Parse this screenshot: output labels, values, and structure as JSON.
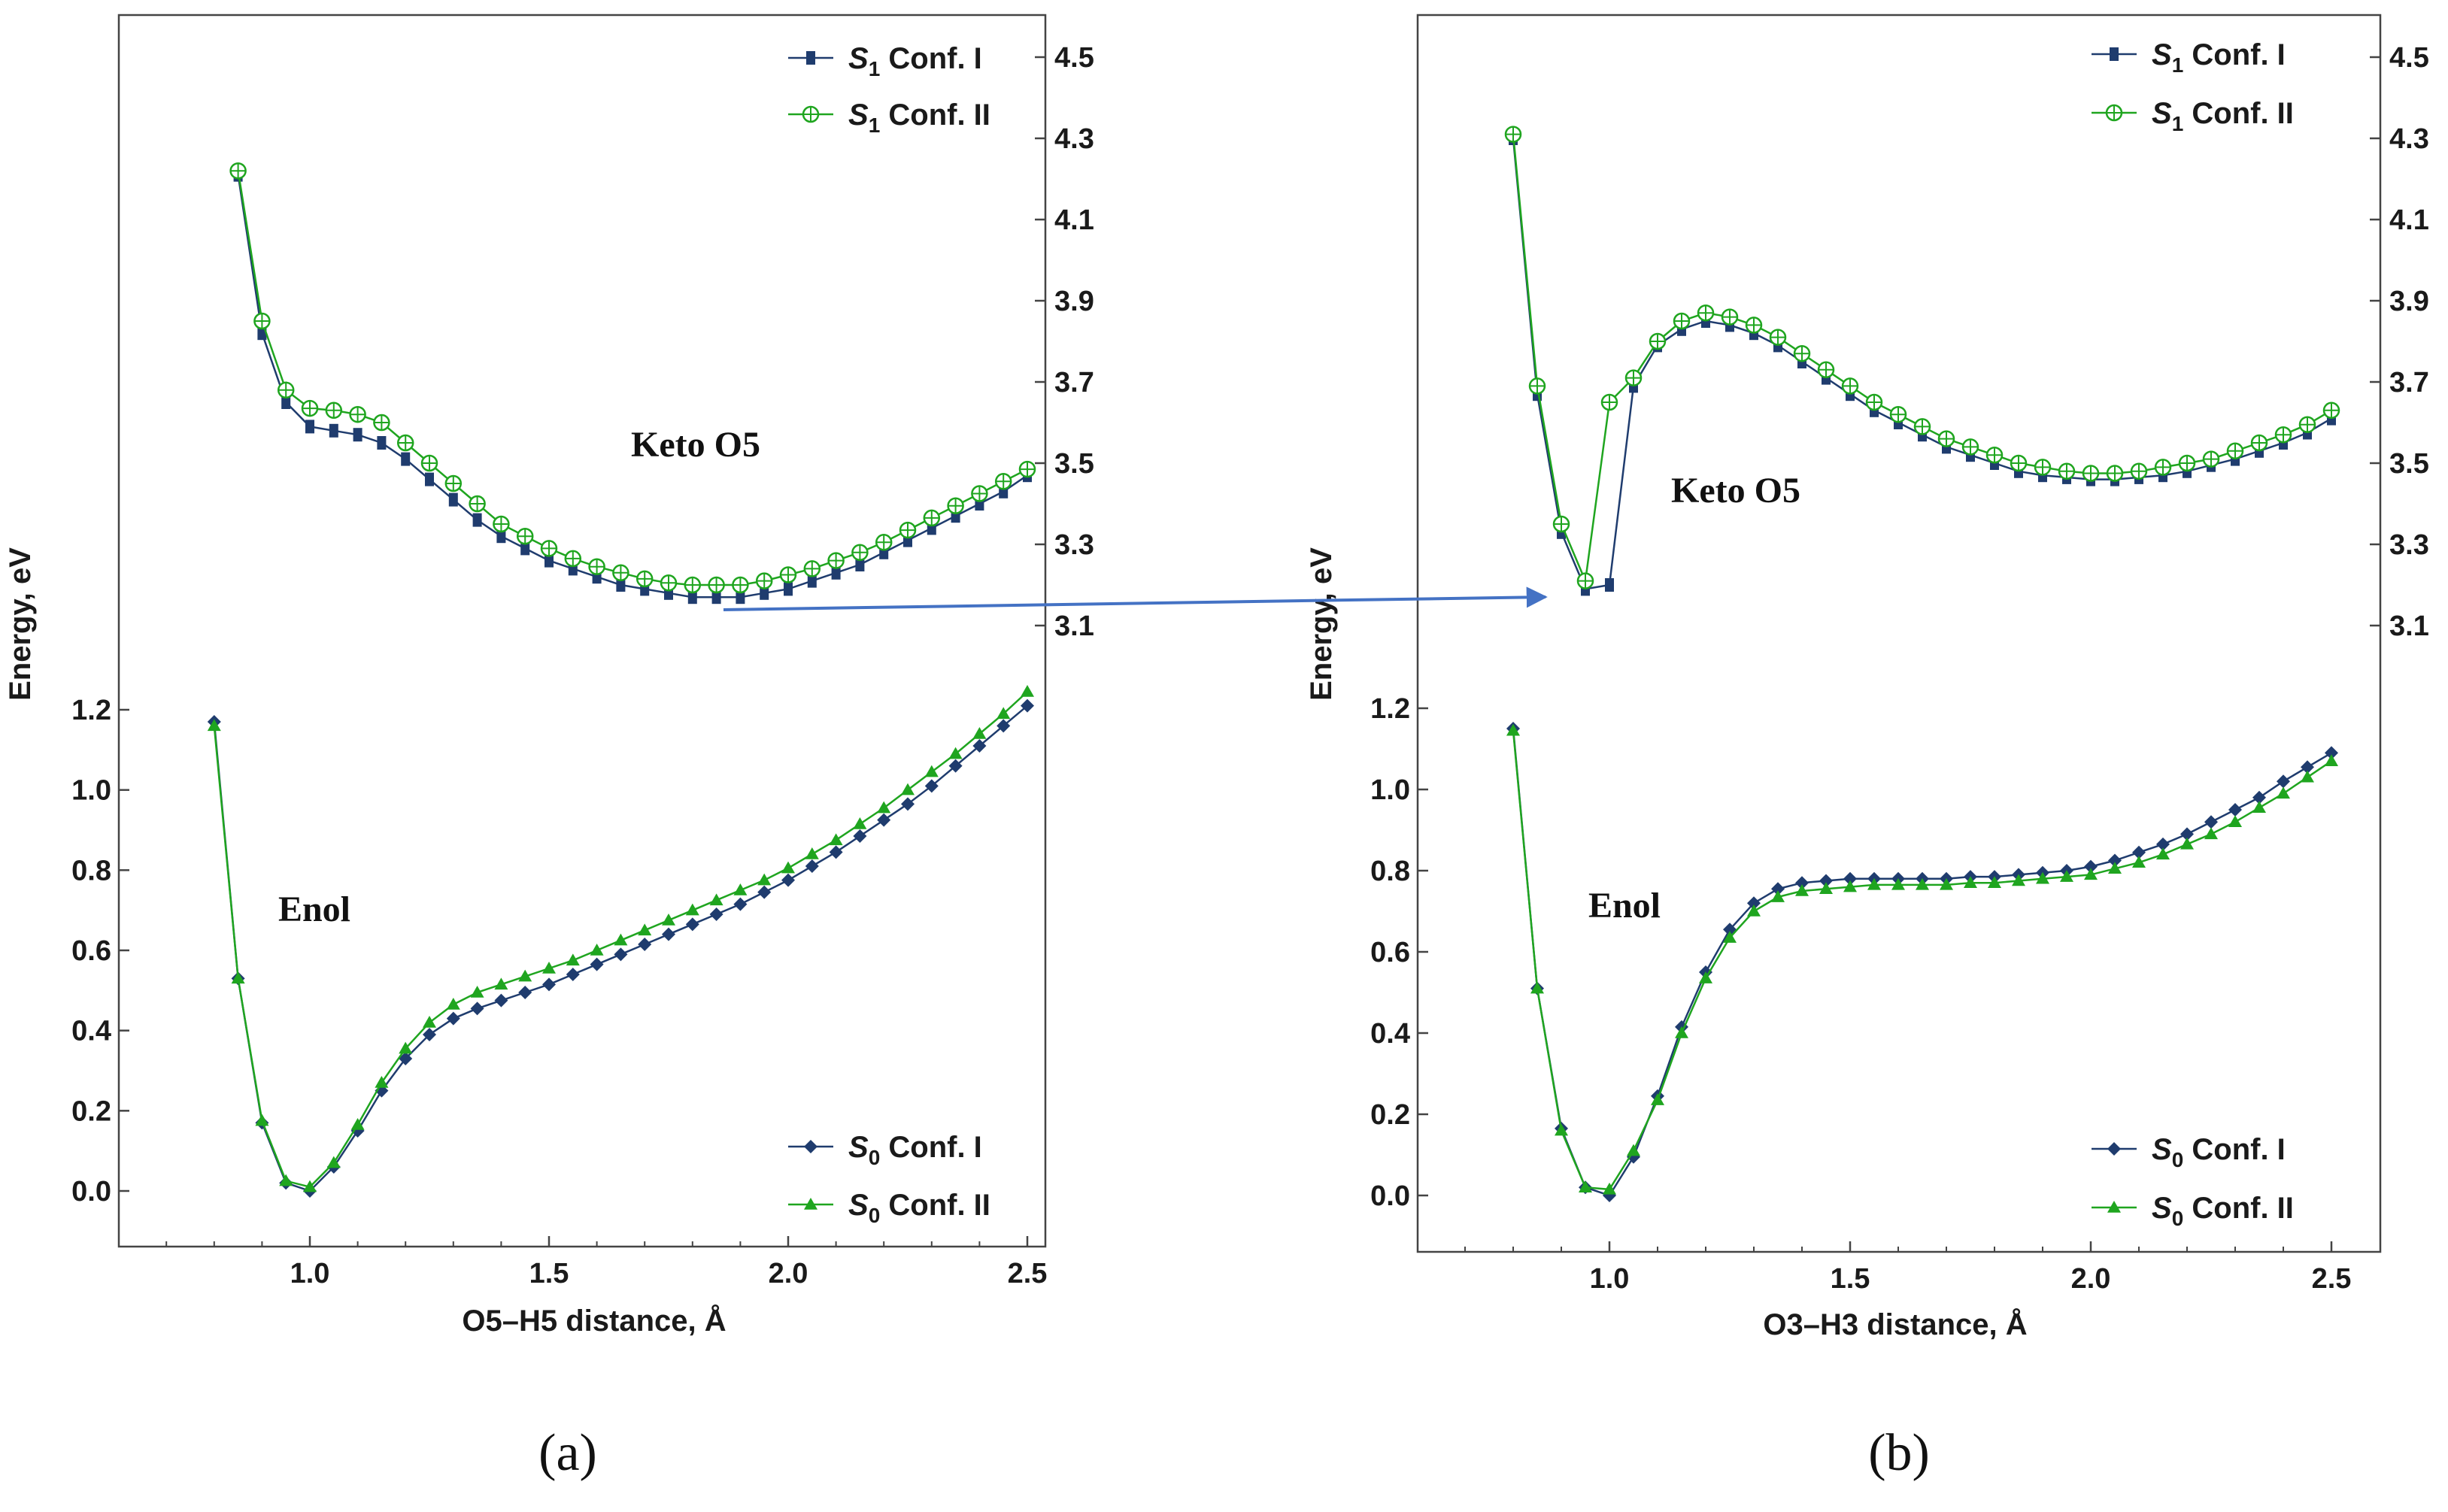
{
  "colors": {
    "navy": "#1f3c6e",
    "green": "#1fa51f",
    "arrow": "#4472c4",
    "axis": "#333333"
  },
  "chart_data": [
    {
      "type": "line",
      "panel_label": "(a)",
      "xlabel": "O5–H5 distance, Å",
      "ylabel": "Energy, eV",
      "xlim": [
        0.6,
        2.55
      ],
      "x_ticks": [
        "1.0",
        "1.5",
        "2.0",
        "2.5"
      ],
      "x_tick_values": [
        1.0,
        1.5,
        2.0,
        2.5
      ],
      "left_ticks": [
        "0.0",
        "0.2",
        "0.4",
        "0.6",
        "0.8",
        "1.0",
        "1.2"
      ],
      "left_tick_values": [
        0.0,
        0.2,
        0.4,
        0.6,
        0.8,
        1.0,
        1.2
      ],
      "right_ticks": [
        "3.1",
        "3.3",
        "3.5",
        "3.7",
        "3.9",
        "4.1",
        "4.3",
        "4.5"
      ],
      "right_tick_values": [
        3.1,
        3.3,
        3.5,
        3.7,
        3.9,
        4.1,
        4.3,
        4.5
      ],
      "annotations": {
        "upper": "Keto O5",
        "lower": "Enol"
      },
      "s0": {
        "x": [
          0.8,
          0.85,
          0.9,
          0.95,
          1.0,
          1.05,
          1.1,
          1.15,
          1.2,
          1.25,
          1.3,
          1.35,
          1.4,
          1.45,
          1.5,
          1.55,
          1.6,
          1.65,
          1.7,
          1.75,
          1.8,
          1.85,
          1.9,
          1.95,
          2.0,
          2.05,
          2.1,
          2.15,
          2.2,
          2.25,
          2.3,
          2.35,
          2.4,
          2.45,
          2.5
        ],
        "series": [
          {
            "name": "S0 Conf. I",
            "legend_sub": "0",
            "legend_text": "Conf. I",
            "color": "#1f3c6e",
            "marker": "diamond",
            "values": [
              1.17,
              0.53,
              0.17,
              0.02,
              0.0,
              0.06,
              0.15,
              0.25,
              0.33,
              0.39,
              0.43,
              0.455,
              0.475,
              0.495,
              0.515,
              0.54,
              0.565,
              0.59,
              0.615,
              0.64,
              0.665,
              0.69,
              0.715,
              0.745,
              0.775,
              0.81,
              0.845,
              0.885,
              0.925,
              0.965,
              1.01,
              1.06,
              1.11,
              1.16,
              1.21
            ]
          },
          {
            "name": "S0 Conf. II",
            "legend_sub": "0",
            "legend_text": "Conf. II",
            "color": "#1fa51f",
            "marker": "triangle",
            "values": [
              1.16,
              0.53,
              0.175,
              0.025,
              0.01,
              0.07,
              0.165,
              0.27,
              0.355,
              0.42,
              0.465,
              0.495,
              0.515,
              0.535,
              0.555,
              0.575,
              0.6,
              0.625,
              0.65,
              0.675,
              0.7,
              0.725,
              0.75,
              0.775,
              0.805,
              0.84,
              0.875,
              0.915,
              0.955,
              1.0,
              1.045,
              1.09,
              1.14,
              1.19,
              1.245
            ]
          }
        ]
      },
      "s1": {
        "x": [
          0.85,
          0.9,
          0.95,
          1.0,
          1.05,
          1.1,
          1.15,
          1.2,
          1.25,
          1.3,
          1.35,
          1.4,
          1.45,
          1.5,
          1.55,
          1.6,
          1.65,
          1.7,
          1.75,
          1.8,
          1.85,
          1.9,
          1.95,
          2.0,
          2.05,
          2.1,
          2.15,
          2.2,
          2.25,
          2.3,
          2.35,
          2.4,
          2.45,
          2.5
        ],
        "series": [
          {
            "name": "S1 Conf. I",
            "legend_sub": "1",
            "legend_text": "Conf. I",
            "color": "#1f3c6e",
            "marker": "square",
            "values": [
              4.21,
              3.82,
              3.65,
              3.59,
              3.58,
              3.57,
              3.55,
              3.51,
              3.46,
              3.41,
              3.36,
              3.32,
              3.29,
              3.26,
              3.24,
              3.22,
              3.2,
              3.19,
              3.18,
              3.17,
              3.17,
              3.17,
              3.18,
              3.19,
              3.21,
              3.23,
              3.25,
              3.28,
              3.31,
              3.34,
              3.37,
              3.4,
              3.43,
              3.47
            ]
          },
          {
            "name": "S1 Conf. II",
            "legend_sub": "1",
            "legend_text": "Conf. II",
            "color": "#1fa51f",
            "marker": "circle",
            "values": [
              4.22,
              3.85,
              3.68,
              3.635,
              3.63,
              3.62,
              3.6,
              3.55,
              3.5,
              3.45,
              3.4,
              3.35,
              3.32,
              3.29,
              3.265,
              3.245,
              3.23,
              3.215,
              3.205,
              3.2,
              3.2,
              3.2,
              3.21,
              3.225,
              3.24,
              3.26,
              3.28,
              3.305,
              3.335,
              3.365,
              3.395,
              3.425,
              3.455,
              3.485
            ]
          }
        ]
      }
    },
    {
      "type": "line",
      "panel_label": "(b)",
      "xlabel": "O3–H3 distance, Å",
      "ylabel": "Energy, eV",
      "xlim": [
        0.6,
        2.55
      ],
      "x_ticks": [
        "1.0",
        "1.5",
        "2.0",
        "2.5"
      ],
      "x_tick_values": [
        1.0,
        1.5,
        2.0,
        2.5
      ],
      "left_ticks": [
        "0.0",
        "0.2",
        "0.4",
        "0.6",
        "0.8",
        "1.0",
        "1.2"
      ],
      "left_tick_values": [
        0.0,
        0.2,
        0.4,
        0.6,
        0.8,
        1.0,
        1.2
      ],
      "right_ticks": [
        "3.1",
        "3.3",
        "3.5",
        "3.7",
        "3.9",
        "4.1",
        "4.3",
        "4.5"
      ],
      "right_tick_values": [
        3.1,
        3.3,
        3.5,
        3.7,
        3.9,
        4.1,
        4.3,
        4.5
      ],
      "annotations": {
        "upper": "Keto O5",
        "lower": "Enol"
      },
      "s0": {
        "x": [
          0.8,
          0.85,
          0.9,
          0.95,
          1.0,
          1.05,
          1.1,
          1.15,
          1.2,
          1.25,
          1.3,
          1.35,
          1.4,
          1.45,
          1.5,
          1.55,
          1.6,
          1.65,
          1.7,
          1.75,
          1.8,
          1.85,
          1.9,
          1.95,
          2.0,
          2.05,
          2.1,
          2.15,
          2.2,
          2.25,
          2.3,
          2.35,
          2.4,
          2.45,
          2.5
        ],
        "series": [
          {
            "name": "S0 Conf. I",
            "legend_sub": "0",
            "legend_text": "Conf. I",
            "color": "#1f3c6e",
            "marker": "diamond",
            "values": [
              1.15,
              0.51,
              0.165,
              0.02,
              0.0,
              0.095,
              0.245,
              0.415,
              0.55,
              0.655,
              0.72,
              0.755,
              0.77,
              0.775,
              0.78,
              0.78,
              0.78,
              0.78,
              0.78,
              0.785,
              0.785,
              0.79,
              0.795,
              0.8,
              0.81,
              0.825,
              0.845,
              0.865,
              0.89,
              0.92,
              0.95,
              0.98,
              1.02,
              1.055,
              1.09
            ]
          },
          {
            "name": "S0 Conf. II",
            "legend_sub": "0",
            "legend_text": "Conf. II",
            "color": "#1fa51f",
            "marker": "triangle",
            "values": [
              1.145,
              0.51,
              0.16,
              0.02,
              0.015,
              0.11,
              0.235,
              0.4,
              0.535,
              0.635,
              0.7,
              0.735,
              0.75,
              0.755,
              0.76,
              0.765,
              0.765,
              0.765,
              0.765,
              0.77,
              0.77,
              0.775,
              0.78,
              0.785,
              0.79,
              0.805,
              0.82,
              0.84,
              0.865,
              0.89,
              0.92,
              0.955,
              0.99,
              1.03,
              1.07
            ]
          }
        ]
      },
      "s1": {
        "x": [
          0.8,
          0.85,
          0.9,
          0.95,
          1.0,
          1.05,
          1.1,
          1.15,
          1.2,
          1.25,
          1.3,
          1.35,
          1.4,
          1.45,
          1.5,
          1.55,
          1.6,
          1.65,
          1.7,
          1.75,
          1.8,
          1.85,
          1.9,
          1.95,
          2.0,
          2.05,
          2.1,
          2.15,
          2.2,
          2.25,
          2.3,
          2.35,
          2.4,
          2.45,
          2.5
        ],
        "series": [
          {
            "name": "S1 Conf. I",
            "legend_sub": "1",
            "legend_text": "Conf. I",
            "color": "#1f3c6e",
            "marker": "square",
            "values": [
              4.3,
              3.67,
              3.33,
              3.19,
              3.2,
              3.69,
              3.79,
              3.83,
              3.85,
              3.84,
              3.82,
              3.79,
              3.75,
              3.71,
              3.67,
              3.63,
              3.6,
              3.57,
              3.54,
              3.52,
              3.5,
              3.48,
              3.47,
              3.465,
              3.46,
              3.46,
              3.465,
              3.47,
              3.48,
              3.495,
              3.51,
              3.53,
              3.55,
              3.575,
              3.61
            ]
          },
          {
            "name": "S1 Conf. II",
            "legend_sub": "1",
            "legend_text": "Conf. II",
            "color": "#1fa51f",
            "marker": "circle",
            "values": [
              4.31,
              3.69,
              3.35,
              3.21,
              3.65,
              3.71,
              3.8,
              3.85,
              3.87,
              3.86,
              3.84,
              3.81,
              3.77,
              3.73,
              3.69,
              3.65,
              3.62,
              3.59,
              3.56,
              3.54,
              3.52,
              3.5,
              3.49,
              3.48,
              3.475,
              3.475,
              3.48,
              3.49,
              3.5,
              3.51,
              3.53,
              3.55,
              3.57,
              3.595,
              3.63
            ]
          }
        ]
      }
    }
  ]
}
